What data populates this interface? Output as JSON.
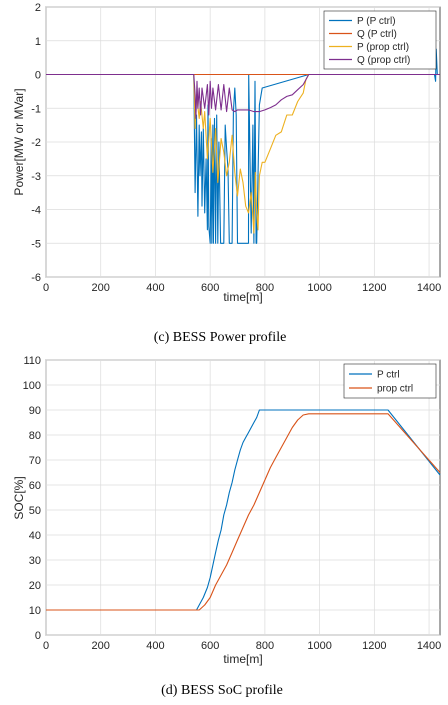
{
  "chart_data": [
    {
      "type": "line",
      "caption": "(c)  BESS  Power  profile",
      "xlabel": "time[m]",
      "ylabel": "Power[MW or MVar]",
      "xlim": [
        0,
        1440
      ],
      "ylim": [
        -6,
        2
      ],
      "xticks": [
        "0",
        "200",
        "400",
        "600",
        "800",
        "1000",
        "1200",
        "1400"
      ],
      "yticks": [
        "-6",
        "-5",
        "-4",
        "-3",
        "-2",
        "-1",
        "0",
        "1",
        "2"
      ],
      "grid": true,
      "legend_position": "top-right",
      "series": [
        {
          "name": "P (P ctrl)",
          "color": "#0072BD",
          "x": [
            0,
            540,
            545,
            550,
            555,
            560,
            563,
            568,
            570,
            575,
            580,
            585,
            590,
            592,
            595,
            600,
            604,
            606,
            610,
            612,
            616,
            620,
            624,
            628,
            632,
            638,
            640,
            650,
            655,
            660,
            665,
            670,
            680,
            685,
            690,
            695,
            700,
            710,
            720,
            740,
            741,
            750,
            756,
            760,
            764,
            768,
            770,
            775,
            780,
            790,
            960,
            1000,
            1250,
            1420,
            1424,
            1426,
            1430,
            1440
          ],
          "y": [
            0,
            0,
            -3.5,
            -1.2,
            -4.2,
            -1.5,
            -3,
            -1.7,
            -3.9,
            -1.6,
            -4.1,
            -2.5,
            -4.6,
            -0.9,
            -4.5,
            -5,
            -1.9,
            -5,
            -1.5,
            -5,
            -1.3,
            -5,
            -1.2,
            -5,
            -2,
            -5,
            -5,
            -5,
            -1.5,
            -2.2,
            -2.8,
            -5,
            -5,
            -1.1,
            -0.4,
            -1.2,
            -5,
            -5,
            -5,
            -5,
            0,
            -4.7,
            -1.5,
            -5,
            -0.2,
            -5,
            -5,
            -3,
            -0.9,
            -0.4,
            0,
            0,
            0,
            0,
            -0.2,
            0.75,
            0,
            0
          ]
        },
        {
          "name": "Q (P ctrl)",
          "color": "#D95319",
          "x": [
            0,
            1440
          ],
          "y": [
            0,
            0
          ]
        },
        {
          "name": "P (prop ctrl)",
          "color": "#EDB120",
          "x": [
            0,
            540,
            545,
            550,
            560,
            565,
            575,
            580,
            590,
            600,
            610,
            620,
            628,
            640,
            650,
            660,
            670,
            680,
            690,
            700,
            710,
            720,
            730,
            740,
            750,
            760,
            765,
            770,
            775,
            780,
            790,
            800,
            820,
            840,
            860,
            880,
            900,
            920,
            940,
            950,
            960,
            1440
          ],
          "y": [
            0,
            0,
            -1.6,
            -0.6,
            -1.3,
            -0.8,
            -1.6,
            -1.1,
            -2.5,
            -1.3,
            -2.9,
            -1.6,
            -3.2,
            -1.9,
            -2.3,
            -3.0,
            -2.6,
            -1.8,
            -2.9,
            -3.6,
            -2.8,
            -3.2,
            -3.9,
            -4.1,
            -3.5,
            -4.7,
            -2.9,
            -4.1,
            -4.6,
            -3.0,
            -2.6,
            -2.6,
            -2.2,
            -1.8,
            -1.7,
            -1.2,
            -1.2,
            -0.8,
            -0.55,
            -0.15,
            0,
            0
          ]
        },
        {
          "name": "Q (prop ctrl)",
          "color": "#7E2F8E",
          "x": [
            0,
            540,
            545,
            548,
            552,
            555,
            560,
            565,
            570,
            580,
            590,
            595,
            600,
            605,
            610,
            620,
            630,
            640,
            650,
            660,
            670,
            680,
            690,
            700,
            720,
            740,
            760,
            780,
            800,
            820,
            840,
            860,
            880,
            900,
            920,
            940,
            960,
            1440
          ],
          "y": [
            0,
            0,
            -0.6,
            -1.3,
            -0.2,
            -1.0,
            -0.4,
            -1.2,
            -0.4,
            -1.0,
            -0.3,
            -1.2,
            -0.2,
            -1.0,
            -0.4,
            -1.05,
            -0.3,
            -1.05,
            -0.3,
            -1.1,
            -0.4,
            -1.05,
            -1.1,
            -1.05,
            -1.05,
            -1.05,
            -1.1,
            -1.1,
            -1.05,
            -0.98,
            -0.9,
            -0.75,
            -0.65,
            -0.6,
            -0.45,
            -0.3,
            0,
            0
          ]
        }
      ]
    },
    {
      "type": "line",
      "caption": "(d)  BESS  SoC  profile",
      "xlabel": "time[m]",
      "ylabel": "SOC[%]",
      "xlim": [
        0,
        1440
      ],
      "ylim": [
        0,
        110
      ],
      "xticks": [
        "0",
        "200",
        "400",
        "600",
        "800",
        "1000",
        "1200",
        "1400"
      ],
      "yticks": [
        "0",
        "10",
        "20",
        "30",
        "40",
        "50",
        "60",
        "70",
        "80",
        "90",
        "100",
        "110"
      ],
      "grid": true,
      "legend_position": "top-right",
      "series": [
        {
          "name": "P ctrl",
          "color": "#0072BD",
          "x": [
            0,
            550,
            575,
            590,
            600,
            610,
            620,
            630,
            640,
            650,
            660,
            670,
            680,
            690,
            700,
            710,
            720,
            730,
            740,
            750,
            760,
            770,
            780,
            800,
            1000,
            1250,
            1440
          ],
          "y": [
            10,
            10,
            15,
            19,
            23,
            28,
            33,
            38,
            42,
            48,
            52,
            57,
            61,
            66,
            70,
            74,
            77,
            79,
            81,
            83,
            85,
            87,
            90,
            90,
            90,
            90,
            64
          ]
        },
        {
          "name": "prop ctrl",
          "color": "#D95319",
          "x": [
            0,
            560,
            580,
            600,
            620,
            640,
            660,
            680,
            700,
            720,
            740,
            760,
            780,
            800,
            820,
            840,
            860,
            880,
            900,
            920,
            940,
            960,
            1250,
            1440
          ],
          "y": [
            10,
            10,
            12,
            15,
            20,
            24,
            28,
            33,
            38,
            43,
            48,
            52,
            57,
            62,
            67,
            71,
            75,
            79,
            83,
            86,
            88,
            88.5,
            88.5,
            65
          ]
        }
      ]
    }
  ]
}
